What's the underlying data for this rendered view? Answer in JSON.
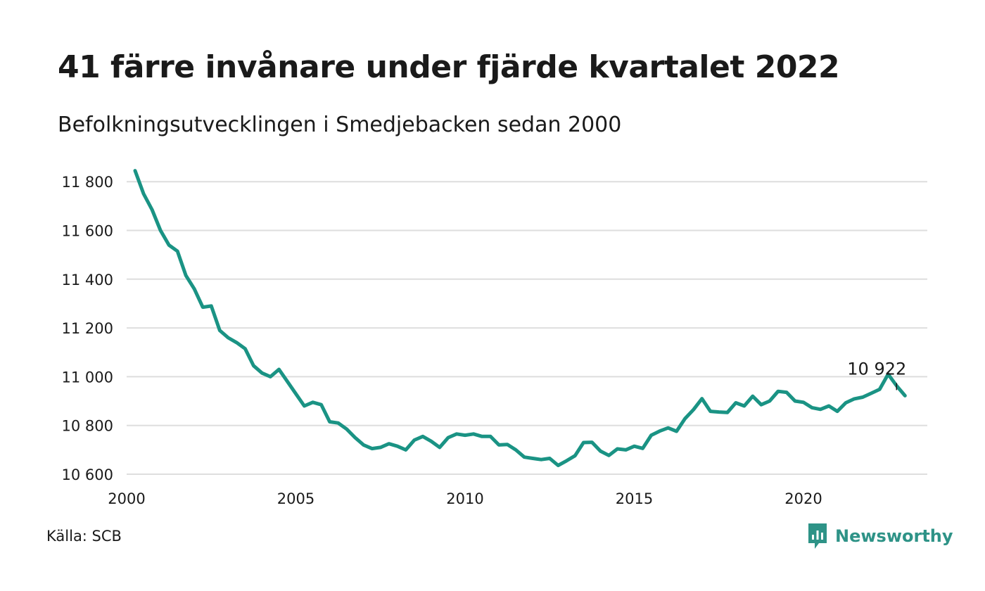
{
  "header": {
    "title": "41 färre invånare under fjärde kvartalet 2022",
    "subtitle": "Befolkningsutvecklingen i Smedjebacken sedan 2000"
  },
  "footer": {
    "source": "Källa: SCB",
    "brand_name": "Newsworthy"
  },
  "colors": {
    "line": "#1a9384",
    "grid": "#dedede",
    "text": "#1a1a1a",
    "brand": "#2e9387"
  },
  "chart_data": {
    "type": "line",
    "title": "41 färre invånare under fjärde kvartalet 2022",
    "subtitle": "Befolkningsutvecklingen i Smedjebacken sedan 2000",
    "xlabel": "",
    "ylabel": "",
    "xlim": [
      2000,
      2023.25
    ],
    "ylim": [
      10600,
      11850
    ],
    "x_ticks": [
      2000,
      2005,
      2010,
      2015,
      2020
    ],
    "x_tick_labels": [
      "2000",
      "2005",
      "2010",
      "2015",
      "2020"
    ],
    "y_ticks": [
      10600,
      10800,
      11000,
      11200,
      11400,
      11600,
      11800
    ],
    "y_tick_labels": [
      "10 600",
      "10 800",
      "11 000",
      "11 200",
      "11 400",
      "11 600",
      "11 800"
    ],
    "grid": true,
    "legend": "none",
    "annotation": {
      "x": 2022.75,
      "y": 10922,
      "label": "10 922"
    },
    "series": [
      {
        "x": [
          2000.25,
          2000.5,
          2000.75,
          2001,
          2001.25,
          2001.5,
          2001.75,
          2002,
          2002.25,
          2002.5,
          2002.75,
          2003,
          2003.25,
          2003.5,
          2003.75,
          2004,
          2004.25,
          2004.5,
          2004.75,
          2005,
          2005.25,
          2005.5,
          2005.75,
          2006,
          2006.25,
          2006.5,
          2006.75,
          2007,
          2007.25,
          2007.5,
          2007.75,
          2008,
          2008.25,
          2008.5,
          2008.75,
          2009,
          2009.25,
          2009.5,
          2009.75,
          2010,
          2010.25,
          2010.5,
          2010.75,
          2011,
          2011.25,
          2011.5,
          2011.75,
          2012,
          2012.25,
          2012.5,
          2012.75,
          2013,
          2013.25,
          2013.5,
          2013.75,
          2014,
          2014.25,
          2014.5,
          2014.75,
          2015,
          2015.25,
          2015.5,
          2015.75,
          2016,
          2016.25,
          2016.5,
          2016.75,
          2017,
          2017.25,
          2017.5,
          2017.75,
          2018,
          2018.25,
          2018.5,
          2018.75,
          2019,
          2019.25,
          2019.5,
          2019.75,
          2020,
          2020.25,
          2020.5,
          2020.75,
          2021,
          2021.25,
          2021.5,
          2021.75,
          2022,
          2022.25,
          2022.5,
          2022.75,
          2023
        ],
        "values": [
          11845,
          11750,
          11685,
          11600,
          11540,
          11515,
          11415,
          11360,
          11285,
          11290,
          11190,
          11160,
          11140,
          11115,
          11045,
          11015,
          11000,
          11030,
          10980,
          10930,
          10880,
          10895,
          10885,
          10815,
          10810,
          10785,
          10750,
          10720,
          10705,
          10710,
          10725,
          10715,
          10700,
          10740,
          10755,
          10735,
          10710,
          10750,
          10765,
          10760,
          10765,
          10755,
          10755,
          10720,
          10722,
          10700,
          10670,
          10665,
          10660,
          10665,
          10636,
          10655,
          10676,
          10730,
          10731,
          10695,
          10677,
          10704,
          10700,
          10715,
          10706,
          10760,
          10777,
          10790,
          10776,
          10828,
          10865,
          10910,
          10858,
          10855,
          10853,
          10893,
          10880,
          10920,
          10885,
          10900,
          10940,
          10936,
          10900,
          10895,
          10873,
          10866,
          10880,
          10858,
          10893,
          10909,
          10916,
          10932,
          10948,
          11010,
          10963,
          10922
        ]
      }
    ]
  }
}
